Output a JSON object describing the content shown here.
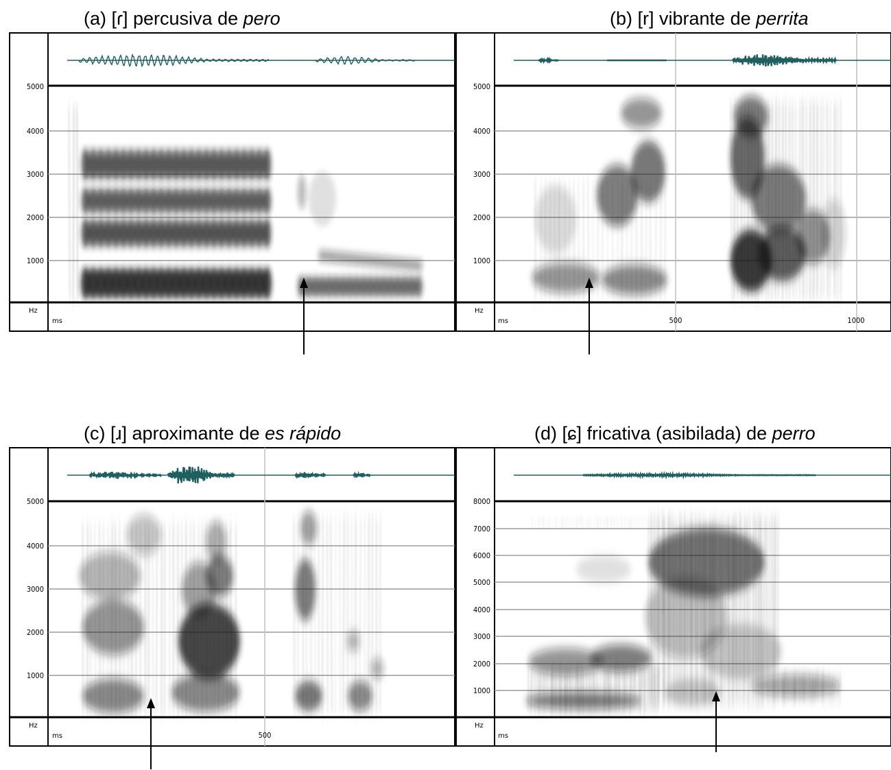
{
  "panels": [
    {
      "id": "a",
      "title": {
        "prefix": "(a) [",
        "symbol": "ɾ",
        "middle": "] percusiva de ",
        "word": "pero"
      },
      "yticks": [
        "5000",
        "4000",
        "3000",
        "2000",
        "1000"
      ],
      "hz_label": "Hz",
      "ms_label": "ms",
      "xticks": []
    },
    {
      "id": "b",
      "title": {
        "prefix": "(b) [",
        "symbol": "r",
        "middle": "] vibrante de ",
        "word": "perrita"
      },
      "yticks": [
        "5000",
        "4000",
        "3000",
        "2000",
        "1000"
      ],
      "hz_label": "Hz",
      "ms_label": "ms",
      "xticks": [
        "500",
        "1000"
      ]
    },
    {
      "id": "c",
      "title": {
        "prefix": "(c) [",
        "symbol": "ɹ",
        "middle": "] aproximante de ",
        "word": "es rápido"
      },
      "yticks": [
        "5000",
        "4000",
        "3000",
        "2000",
        "1000"
      ],
      "hz_label": "Hz",
      "ms_label": "ms",
      "xticks": [
        "500"
      ]
    },
    {
      "id": "d",
      "title": {
        "prefix": "(d) [",
        "symbol": "ɕ",
        "middle": "] fricativa (asibilada) de ",
        "word": "perro"
      },
      "yticks": [
        "8000",
        "7000",
        "6000",
        "5000",
        "4000",
        "3000",
        "2000",
        "1000"
      ],
      "hz_label": "Hz",
      "ms_label": "ms",
      "xticks": []
    }
  ],
  "colors": {
    "waveform": "#1f5f5f",
    "spectrogram_ink": "#1a1a1a",
    "grid": "#9a9a9a",
    "frame": "#000000"
  }
}
